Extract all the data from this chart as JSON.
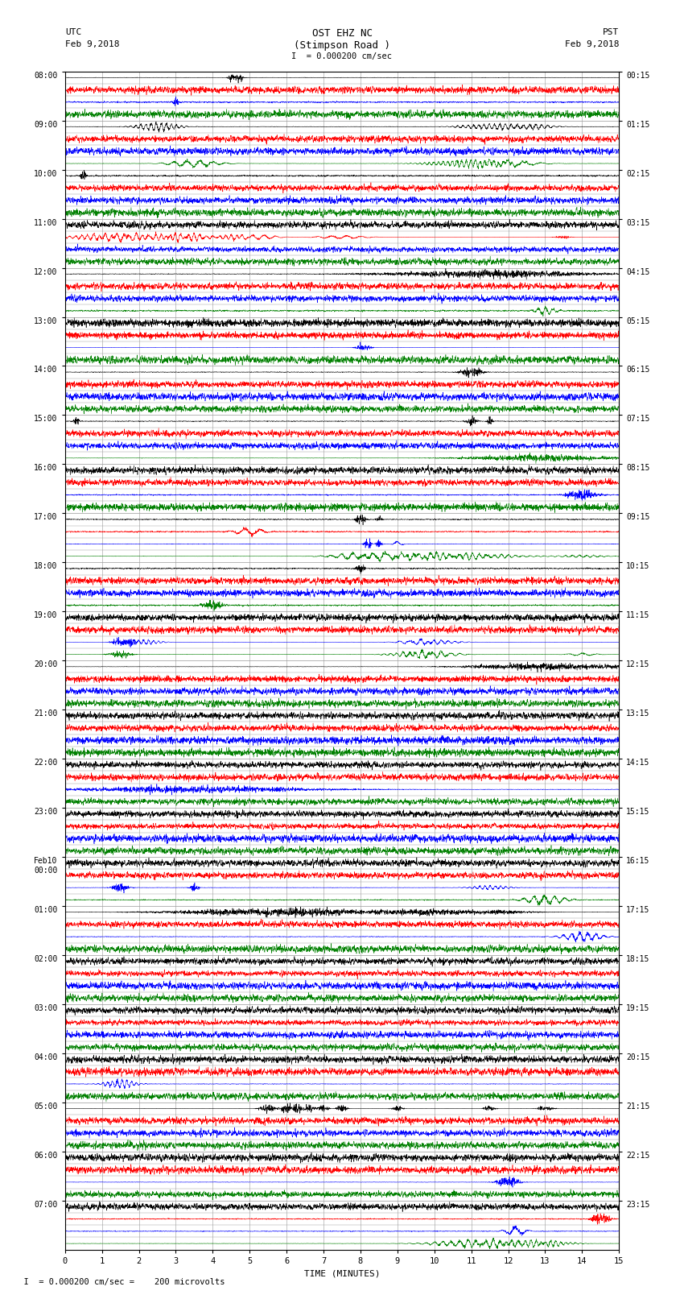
{
  "title_line1": "OST EHZ NC",
  "title_line2": "(Stimpson Road )",
  "title_line3": "I  = 0.000200 cm/sec",
  "left_label_top": "UTC",
  "left_label_date": "Feb 9,2018",
  "right_label_top": "PST",
  "right_label_date": "Feb 9,2018",
  "xlabel": "TIME (MINUTES)",
  "footer": "  I  = 0.000200 cm/sec =    200 microvolts",
  "n_rows": 96,
  "n_cols": 15,
  "row_colors_cycle": [
    "black",
    "red",
    "blue",
    "green"
  ],
  "bg_color": "white",
  "grid_color": "#999999",
  "figsize": [
    8.5,
    16.13
  ],
  "dpi": 100,
  "seed": 12345,
  "utc_labels": {
    "0": "08:00",
    "4": "09:00",
    "8": "10:00",
    "12": "11:00",
    "16": "12:00",
    "20": "13:00",
    "24": "14:00",
    "28": "15:00",
    "32": "16:00",
    "36": "17:00",
    "40": "18:00",
    "44": "19:00",
    "48": "20:00",
    "52": "21:00",
    "56": "22:00",
    "60": "23:00",
    "64": "Feb10\n00:00",
    "68": "01:00",
    "72": "02:00",
    "76": "03:00",
    "80": "04:00",
    "84": "05:00",
    "88": "06:00",
    "92": "07:00"
  },
  "pst_labels": {
    "0": "00:15",
    "4": "01:15",
    "8": "02:15",
    "12": "03:15",
    "16": "04:15",
    "20": "05:15",
    "24": "06:15",
    "28": "07:15",
    "32": "08:15",
    "36": "09:15",
    "40": "10:15",
    "44": "11:15",
    "48": "12:15",
    "52": "13:15",
    "56": "14:15",
    "60": "15:15",
    "64": "16:15",
    "68": "17:15",
    "72": "18:15",
    "76": "19:15",
    "80": "20:15",
    "84": "21:15",
    "88": "22:15",
    "92": "23:15"
  },
  "row_noise_base": 0.025,
  "samples_per_min": 200
}
